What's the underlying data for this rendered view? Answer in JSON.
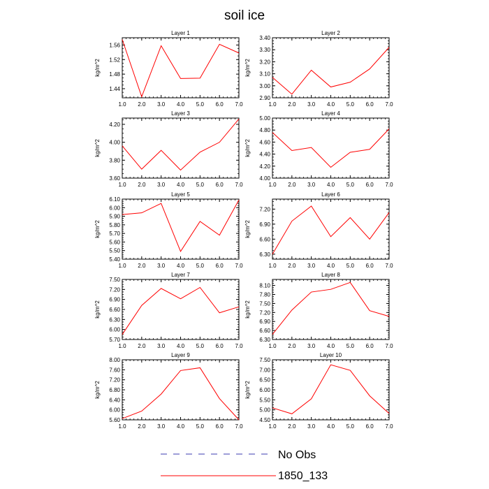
{
  "title": "soil ice",
  "legend": {
    "items": [
      {
        "label": "No Obs",
        "color": "#3b3bb0",
        "style": "dashed"
      },
      {
        "label": "1850_133",
        "color": "#ff0000",
        "style": "solid"
      }
    ]
  },
  "chart_data": [
    {
      "type": "line",
      "title": "Layer 1",
      "ylabel": "kg/m^2",
      "xlim": [
        1,
        7
      ],
      "ylim": [
        1.415,
        1.58
      ],
      "xticks": [
        1,
        2,
        3,
        4,
        5,
        6,
        7
      ],
      "xticklabels": [
        "1.0",
        "2.0",
        "3.0",
        "4.0",
        "5.0",
        "6.0",
        "7.0"
      ],
      "yticks": [
        1.44,
        1.48,
        1.52,
        1.56
      ],
      "yticklabels": [
        "1.44",
        "1.48",
        "1.52",
        "1.56"
      ],
      "series": [
        {
          "name": "1850_133",
          "x": [
            1,
            2,
            3,
            4,
            5,
            6,
            7
          ],
          "values": [
            1.575,
            1.418,
            1.558,
            1.468,
            1.469,
            1.562,
            1.538
          ]
        }
      ]
    },
    {
      "type": "line",
      "title": "Layer 2",
      "ylabel": "kg/m^2",
      "xlim": [
        1,
        7
      ],
      "ylim": [
        2.9,
        3.4
      ],
      "xticks": [
        1,
        2,
        3,
        4,
        5,
        6,
        7
      ],
      "xticklabels": [
        "1.0",
        "2.0",
        "3.0",
        "4.0",
        "5.0",
        "6.0",
        "7.0"
      ],
      "yticks": [
        2.9,
        3.0,
        3.1,
        3.2,
        3.3,
        3.4
      ],
      "yticklabels": [
        "2.90",
        "3.00",
        "3.10",
        "3.20",
        "3.30",
        "3.40"
      ],
      "series": [
        {
          "name": "1850_133",
          "x": [
            1,
            2,
            3,
            4,
            5,
            6,
            7
          ],
          "values": [
            3.07,
            2.93,
            3.13,
            2.99,
            3.03,
            3.14,
            3.32
          ]
        }
      ]
    },
    {
      "type": "line",
      "title": "Layer 3",
      "ylabel": "kg/m^2",
      "xlim": [
        1,
        7
      ],
      "ylim": [
        3.6,
        4.27
      ],
      "xticks": [
        1,
        2,
        3,
        4,
        5,
        6,
        7
      ],
      "xticklabels": [
        "1.0",
        "2.0",
        "3.0",
        "4.0",
        "5.0",
        "6.0",
        "7.0"
      ],
      "yticks": [
        3.6,
        3.8,
        4.0,
        4.2
      ],
      "yticklabels": [
        "3.60",
        "3.80",
        "4.00",
        "4.20"
      ],
      "series": [
        {
          "name": "1850_133",
          "x": [
            1,
            2,
            3,
            4,
            5,
            6,
            7
          ],
          "values": [
            3.96,
            3.7,
            3.91,
            3.69,
            3.89,
            4.0,
            4.26
          ]
        }
      ]
    },
    {
      "type": "line",
      "title": "Layer 4",
      "ylabel": "kg/m^2",
      "xlim": [
        1,
        7
      ],
      "ylim": [
        4.0,
        5.0
      ],
      "xticks": [
        1,
        2,
        3,
        4,
        5,
        6,
        7
      ],
      "xticklabels": [
        "1.0",
        "2.0",
        "3.0",
        "4.0",
        "5.0",
        "6.0",
        "7.0"
      ],
      "yticks": [
        4.0,
        4.2,
        4.4,
        4.6,
        4.8,
        5.0
      ],
      "yticklabels": [
        "4.00",
        "4.20",
        "4.40",
        "4.60",
        "4.80",
        "5.00"
      ],
      "series": [
        {
          "name": "1850_133",
          "x": [
            1,
            2,
            3,
            4,
            5,
            6,
            7
          ],
          "values": [
            4.76,
            4.46,
            4.51,
            4.18,
            4.43,
            4.48,
            4.82
          ]
        }
      ]
    },
    {
      "type": "line",
      "title": "Layer 5",
      "ylabel": "kg/m^2",
      "xlim": [
        1,
        7
      ],
      "ylim": [
        5.4,
        6.1
      ],
      "xticks": [
        1,
        2,
        3,
        4,
        5,
        6,
        7
      ],
      "xticklabels": [
        "1.0",
        "2.0",
        "3.0",
        "4.0",
        "5.0",
        "6.0",
        "7.0"
      ],
      "yticks": [
        5.4,
        5.5,
        5.6,
        5.7,
        5.8,
        5.9,
        6.0,
        6.1
      ],
      "yticklabels": [
        "5.40",
        "5.50",
        "5.60",
        "5.70",
        "5.80",
        "5.90",
        "6.00",
        "6.10"
      ],
      "series": [
        {
          "name": "1850_133",
          "x": [
            1,
            2,
            3,
            4,
            5,
            6,
            7
          ],
          "values": [
            5.92,
            5.94,
            6.05,
            5.49,
            5.84,
            5.68,
            6.09
          ]
        }
      ]
    },
    {
      "type": "line",
      "title": "Layer 6",
      "ylabel": "kg/m^2",
      "xlim": [
        1,
        7
      ],
      "ylim": [
        6.2,
        7.4
      ],
      "xticks": [
        1,
        2,
        3,
        4,
        5,
        6,
        7
      ],
      "xticklabels": [
        "1.0",
        "2.0",
        "3.0",
        "4.0",
        "5.0",
        "6.0",
        "7.0"
      ],
      "yticks": [
        6.3,
        6.6,
        6.9,
        7.2
      ],
      "yticklabels": [
        "6.30",
        "6.60",
        "6.90",
        "7.20"
      ],
      "series": [
        {
          "name": "1850_133",
          "x": [
            1,
            2,
            3,
            4,
            5,
            6,
            7
          ],
          "values": [
            6.3,
            6.96,
            7.26,
            6.65,
            7.03,
            6.6,
            7.13
          ]
        }
      ]
    },
    {
      "type": "line",
      "title": "Layer 7",
      "ylabel": "kg/m^2",
      "xlim": [
        1,
        7
      ],
      "ylim": [
        5.7,
        7.5
      ],
      "xticks": [
        1,
        2,
        3,
        4,
        5,
        6,
        7
      ],
      "xticklabels": [
        "1.0",
        "2.0",
        "3.0",
        "4.0",
        "5.0",
        "6.0",
        "7.0"
      ],
      "yticks": [
        5.7,
        6.0,
        6.3,
        6.6,
        6.9,
        7.2,
        7.5
      ],
      "yticklabels": [
        "5.70",
        "6.00",
        "6.30",
        "6.60",
        "6.90",
        "7.20",
        "7.50"
      ],
      "series": [
        {
          "name": "1850_133",
          "x": [
            1,
            2,
            3,
            4,
            5,
            6,
            7
          ],
          "values": [
            5.85,
            6.72,
            7.23,
            6.92,
            7.26,
            6.5,
            6.68
          ]
        }
      ]
    },
    {
      "type": "line",
      "title": "Layer 8",
      "ylabel": "kg/m^2",
      "xlim": [
        1,
        7
      ],
      "ylim": [
        6.3,
        8.3
      ],
      "xticks": [
        1,
        2,
        3,
        4,
        5,
        6,
        7
      ],
      "xticklabels": [
        "1.0",
        "2.0",
        "3.0",
        "4.0",
        "5.0",
        "6.0",
        "7.0"
      ],
      "yticks": [
        6.3,
        6.6,
        6.9,
        7.2,
        7.5,
        7.8,
        8.1
      ],
      "yticklabels": [
        "6.30",
        "6.60",
        "6.90",
        "7.20",
        "7.50",
        "7.80",
        "8.10"
      ],
      "series": [
        {
          "name": "1850_133",
          "x": [
            1,
            2,
            3,
            4,
            5,
            6,
            7
          ],
          "values": [
            6.47,
            7.28,
            7.88,
            7.97,
            8.2,
            7.26,
            7.07
          ]
        }
      ]
    },
    {
      "type": "line",
      "title": "Layer 9",
      "ylabel": "kg/m^2",
      "xlim": [
        1,
        7
      ],
      "ylim": [
        5.6,
        8.0
      ],
      "xticks": [
        1,
        2,
        3,
        4,
        5,
        6,
        7
      ],
      "xticklabels": [
        "1.0",
        "2.0",
        "3.0",
        "4.0",
        "5.0",
        "6.0",
        "7.0"
      ],
      "yticks": [
        5.6,
        6.0,
        6.4,
        6.8,
        7.2,
        7.6,
        8.0
      ],
      "yticklabels": [
        "5.60",
        "6.00",
        "6.40",
        "6.80",
        "7.20",
        "7.60",
        "8.00"
      ],
      "series": [
        {
          "name": "1850_133",
          "x": [
            1,
            2,
            3,
            4,
            5,
            6,
            7
          ],
          "values": [
            5.65,
            5.95,
            6.63,
            7.57,
            7.68,
            6.45,
            5.6
          ]
        }
      ]
    },
    {
      "type": "line",
      "title": "Layer 10",
      "ylabel": "kg/m^2",
      "xlim": [
        1,
        7
      ],
      "ylim": [
        4.5,
        7.5
      ],
      "xticks": [
        1,
        2,
        3,
        4,
        5,
        6,
        7
      ],
      "xticklabels": [
        "1.0",
        "2.0",
        "3.0",
        "4.0",
        "5.0",
        "6.0",
        "7.0"
      ],
      "yticks": [
        4.5,
        5.0,
        5.5,
        6.0,
        6.5,
        7.0,
        7.5
      ],
      "yticklabels": [
        "4.50",
        "5.00",
        "5.50",
        "6.00",
        "6.50",
        "7.00",
        "7.50"
      ],
      "series": [
        {
          "name": "1850_133",
          "x": [
            1,
            2,
            3,
            4,
            5,
            6,
            7
          ],
          "values": [
            5.1,
            4.8,
            5.55,
            7.25,
            6.97,
            5.7,
            4.82
          ]
        }
      ]
    }
  ]
}
